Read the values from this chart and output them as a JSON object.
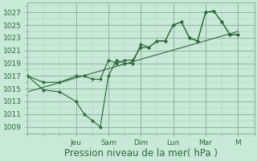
{
  "bg_color": "#c8e8d8",
  "grid_major_color": "#88aa99",
  "grid_minor_color": "#aaccbb",
  "line_color": "#2d6b3a",
  "ylabel_ticks": [
    1009,
    1011,
    1013,
    1015,
    1017,
    1019,
    1021,
    1023,
    1025,
    1027
  ],
  "ylim": [
    1008,
    1028.5
  ],
  "xlabel": "Pression niveau de la mer( hPa )",
  "xlabel_fontsize": 8.5,
  "tick_fontsize": 6.5,
  "day_labels": [
    "Jeu",
    "Sam",
    "Dim",
    "Lun",
    "Mar",
    "M"
  ],
  "day_x": [
    3,
    5,
    7,
    9,
    11,
    13
  ],
  "xlim": [
    0,
    14
  ],
  "line1_x": [
    0,
    1,
    2,
    3,
    3.5,
    4,
    4.5,
    5,
    5.5,
    6,
    6.5,
    7,
    7.5,
    8,
    8.5,
    9,
    9.5,
    10,
    10.5,
    11,
    11.5,
    12,
    12.5,
    13
  ],
  "line1_y": [
    1017,
    1014.8,
    1014.5,
    1013,
    1011,
    1010,
    1009,
    1017,
    1019.5,
    1019,
    1019,
    1022,
    1021.5,
    1022.5,
    1022.5,
    1025,
    1025.5,
    1023,
    1022.5,
    1027,
    1027.2,
    1025.5,
    1023.5,
    1023.5
  ],
  "line2_x": [
    0,
    1,
    2,
    3,
    3.5,
    4,
    4.5,
    5,
    5.5,
    6,
    6.5,
    7,
    7.5,
    8,
    8.5,
    9,
    9.5,
    10,
    10.5,
    11,
    11.5,
    12,
    12.5,
    13
  ],
  "line2_y": [
    1017,
    1016,
    1016,
    1017,
    1017,
    1016.5,
    1016.5,
    1019.5,
    1019,
    1019.5,
    1019.5,
    1021.5,
    1021.5,
    1022.5,
    1022.5,
    1025,
    1025.5,
    1023,
    1022.5,
    1027,
    1027.2,
    1025.5,
    1023.5,
    1023.5
  ],
  "trend_x": [
    0,
    13
  ],
  "trend_y": [
    1014.5,
    1024.0
  ]
}
